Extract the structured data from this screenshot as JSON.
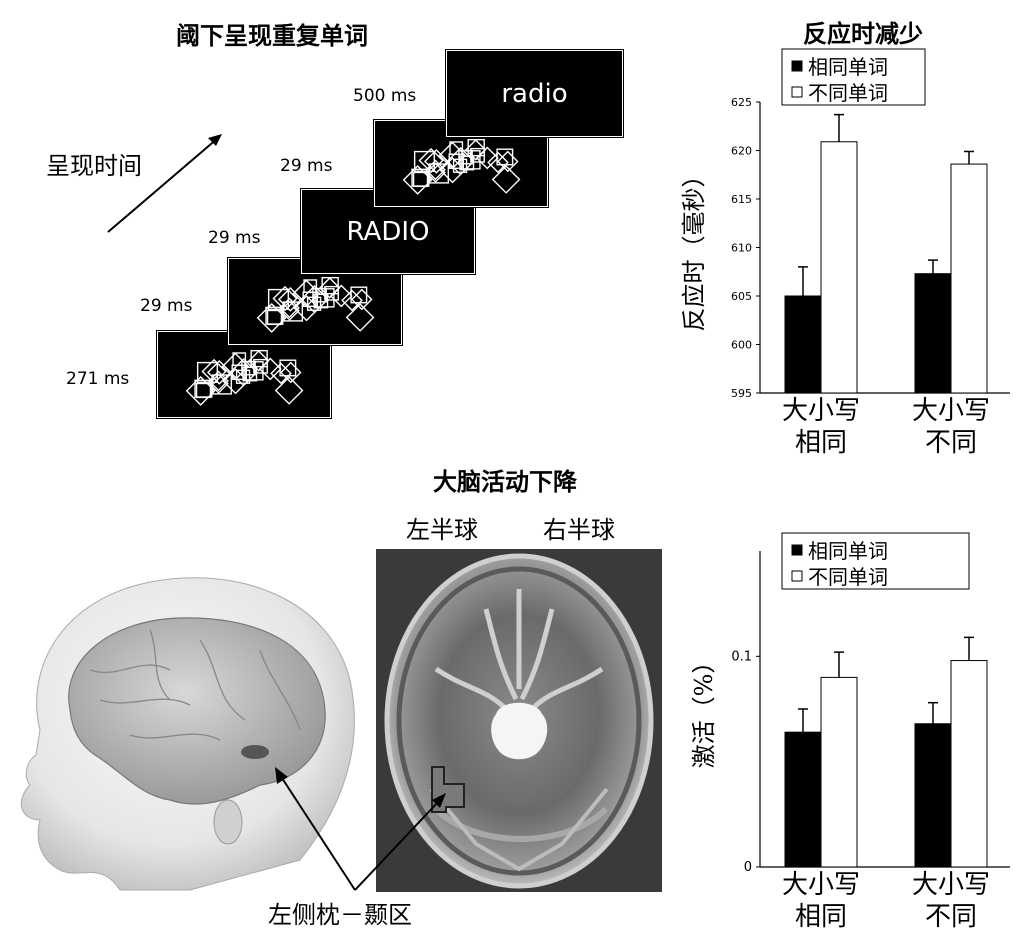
{
  "top_left": {
    "title": "阈下呈现重复单词",
    "time_axis_label": "呈现时间",
    "frames": [
      {
        "time": "271 ms",
        "content": "mask"
      },
      {
        "time": "29 ms",
        "content": "mask"
      },
      {
        "time": "29 ms",
        "content": "RADIO"
      },
      {
        "time": "29 ms",
        "content": "mask"
      },
      {
        "time": "500 ms",
        "content": "radio"
      }
    ]
  },
  "bottom_middle": {
    "title": "大脑活动下降",
    "left_hemisphere": "左半球",
    "right_hemisphere": "右半球",
    "region_label": "左侧枕－颞区"
  },
  "chart_data": [
    {
      "type": "bar",
      "title": "反应时减少",
      "ylabel": "反应时（毫秒）",
      "ylim": [
        595,
        625
      ],
      "yticks": [
        595,
        600,
        605,
        610,
        615,
        620,
        625
      ],
      "categories": [
        [
          "大小写",
          "相同"
        ],
        [
          "大小写",
          "不同"
        ]
      ],
      "series": [
        {
          "name": "相同单词",
          "fill": "#000000",
          "values": [
            605.0,
            607.3
          ],
          "errors": [
            3.0,
            1.4
          ]
        },
        {
          "name": "不同单词",
          "fill": "#ffffff",
          "values": [
            620.9,
            618.6
          ],
          "errors": [
            2.8,
            1.3
          ]
        }
      ],
      "legend": "top-left"
    },
    {
      "type": "bar",
      "title": "",
      "ylabel": "激活（%）",
      "ylim": [
        0,
        0.15
      ],
      "yticks": [
        0,
        0.1
      ],
      "categories": [
        [
          "大小写",
          "相同"
        ],
        [
          "大小写",
          "不同"
        ]
      ],
      "series": [
        {
          "name": "相同单词",
          "fill": "#000000",
          "values": [
            0.064,
            0.068
          ],
          "errors": [
            0.011,
            0.01
          ]
        },
        {
          "name": "不同单词",
          "fill": "#ffffff",
          "values": [
            0.09,
            0.098
          ],
          "errors": [
            0.012,
            0.011
          ]
        }
      ],
      "legend": "top-left"
    }
  ]
}
